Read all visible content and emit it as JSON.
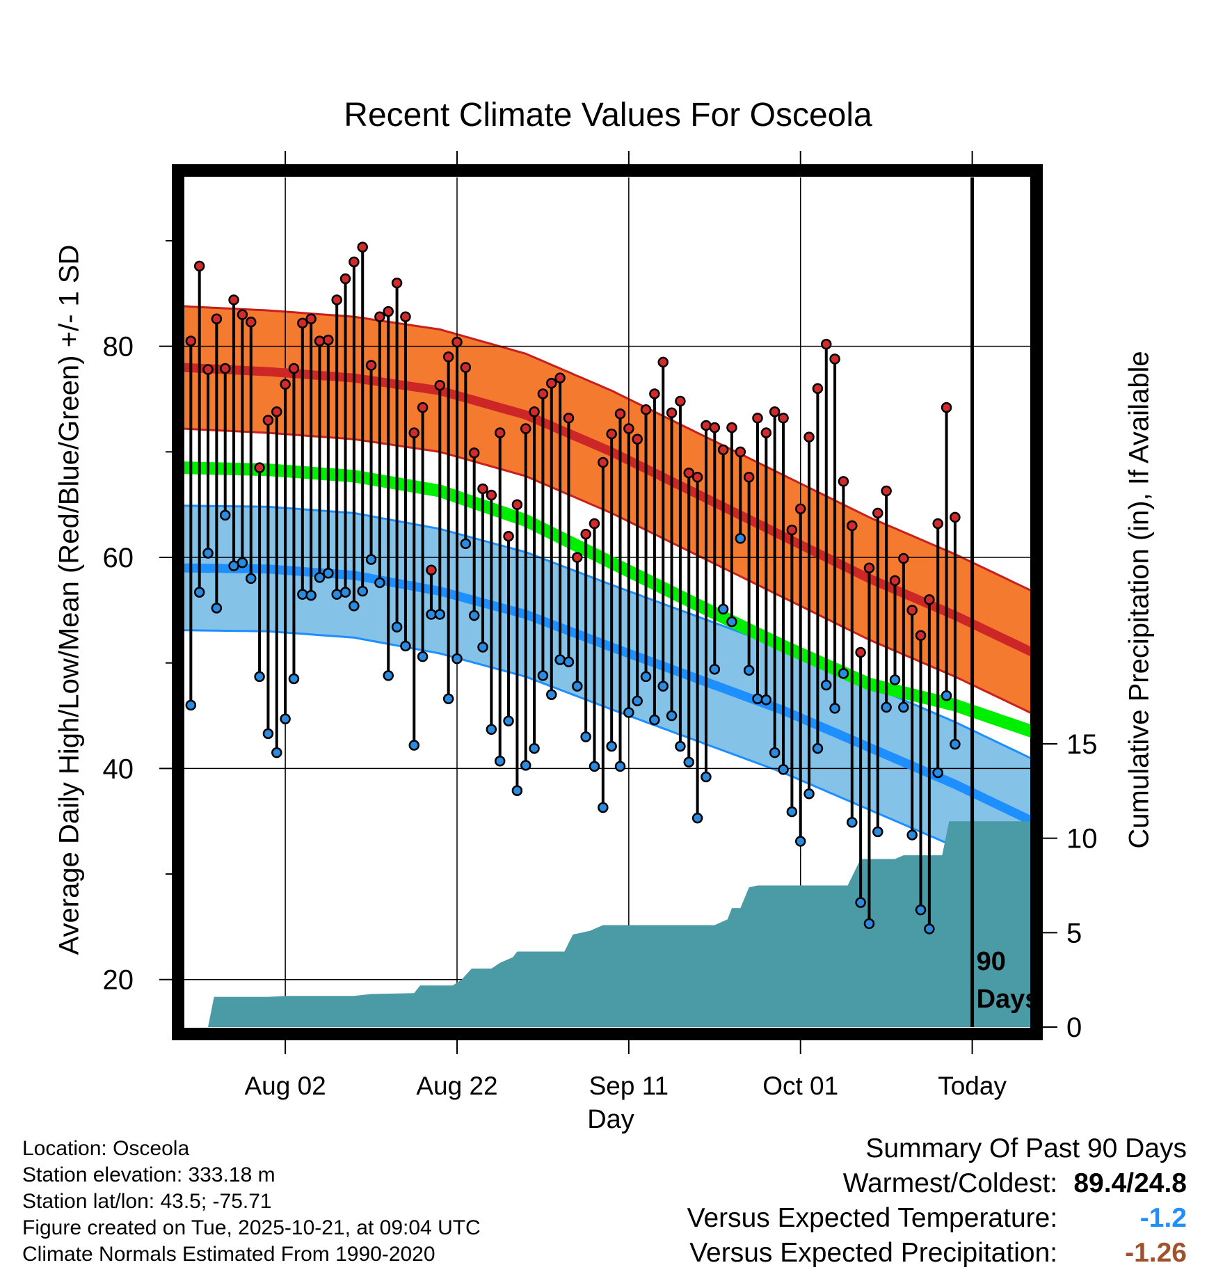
{
  "colors": {
    "high_band": "#f47a30",
    "high_band_edge": "#c8201e",
    "high_mean": "#cd2626",
    "low_band": "#84c2e8",
    "low_band_edge": "#1e8fff",
    "low_mean": "#1e8fff",
    "mean_line": "#00ee00",
    "precip_fill": "#4a9ba5",
    "high_dot": "#d22b2b",
    "low_dot": "#2a8be0",
    "cold_value": "#1e8fff",
    "dry_value": "#a0522d"
  },
  "chart_data": {
    "type": "line",
    "title": "Recent Climate Values For Osceola",
    "xlabel": "Day",
    "ylabel": "Average Daily High/Low/Mean (Red/Blue/Green) +/- 1 SD",
    "y2label": "Cumulative Precipitation (in), If Available",
    "x_range_days": [
      -90,
      9
    ],
    "x_ticks": [
      {
        "day": -78,
        "label": "Aug 02"
      },
      {
        "day": -58,
        "label": "Aug 22"
      },
      {
        "day": -38,
        "label": "Sep 11"
      },
      {
        "day": -18,
        "label": "Oct 01"
      },
      {
        "day": 2,
        "label": "Today"
      }
    ],
    "ylim": [
      15.5,
      96
    ],
    "y_ticks": [
      20,
      40,
      60,
      80
    ],
    "y_minor_ticks": [
      30,
      50,
      70,
      90
    ],
    "y2lim": [
      0,
      45
    ],
    "y2_ticks": [
      0,
      5,
      10,
      15
    ],
    "today_day": 2,
    "today_note": [
      "90",
      "Days"
    ],
    "normals": {
      "days": [
        -90,
        -80,
        -70,
        -60,
        -50,
        -40,
        -30,
        -20,
        -10,
        0,
        9
      ],
      "high_mean": [
        78,
        77.6,
        77,
        75.8,
        73.5,
        70,
        66,
        62,
        58,
        54.5,
        51
      ],
      "high_sd": 5.8,
      "low_mean": [
        59,
        58.9,
        58.3,
        56.8,
        54.6,
        51.5,
        48.5,
        45.5,
        42,
        38.5,
        35
      ],
      "low_sd": 5.9,
      "mean": [
        68.5,
        68.3,
        67.7,
        66.3,
        63.5,
        59.5,
        55.5,
        51.6,
        48,
        46,
        43.5
      ],
      "low_band_end_day": 0
    },
    "daily": {
      "start_day": -89,
      "highs": [
        80.5,
        87.6,
        77.8,
        82.6,
        77.9,
        84.4,
        83,
        82.3,
        68.5,
        73,
        73.8,
        76.4,
        77.9,
        82.2,
        82.6,
        80.5,
        80.6,
        84.4,
        86.4,
        88,
        89.4,
        78.2,
        82.8,
        83.3,
        86,
        82.8,
        71.8,
        74.2,
        58.8,
        76.3,
        79,
        80.4,
        78,
        69.9,
        66.5,
        65.9,
        71.8,
        62,
        65,
        72.2,
        73.8,
        75.5,
        76.5,
        77,
        73.2,
        60,
        62.2,
        63.2,
        69,
        71.7,
        73.6,
        72.2,
        71.2,
        74,
        75.5,
        78.5,
        73.7,
        74.8,
        68,
        67.6,
        72.5,
        72.3,
        70.2,
        72.3,
        70,
        67.6,
        73.2,
        71.8,
        73.8,
        73.2,
        62.6,
        64.6,
        71.4,
        76,
        80.2,
        78.8,
        67.2,
        63,
        51,
        59,
        64.2,
        66.3,
        57.8,
        59.9,
        55,
        52.6,
        56,
        63.2,
        74.2,
        63.8
      ],
      "lows": [
        46,
        56.7,
        60.4,
        55.2,
        64,
        59.2,
        59.5,
        58,
        48.7,
        43.3,
        41.5,
        44.7,
        48.5,
        56.5,
        56.4,
        58.1,
        58.5,
        56.5,
        56.7,
        55.4,
        56.8,
        59.8,
        57.6,
        48.8,
        53.4,
        51.6,
        42.2,
        50.6,
        54.6,
        54.6,
        46.6,
        50.4,
        61.3,
        54.5,
        51.5,
        43.7,
        40.7,
        44.5,
        37.9,
        40.3,
        41.9,
        48.8,
        47,
        50.3,
        50.1,
        47.8,
        43,
        40.2,
        36.3,
        42.1,
        40.2,
        45.3,
        46.4,
        48.7,
        44.6,
        47.8,
        45,
        42.1,
        40.6,
        35.3,
        39.2,
        49.4,
        55.1,
        53.9,
        61.8,
        49.3,
        46.6,
        46.5,
        41.5,
        39.9,
        35.9,
        33.1,
        37.6,
        41.9,
        47.9,
        45.7,
        49,
        34.9,
        27.3,
        25.3,
        34,
        45.8,
        48.4,
        45.8,
        33.7,
        26.6,
        24.8,
        39.6,
        46.9,
        42.3
      ]
    },
    "precip_cumulative": [
      {
        "day": -90,
        "in": 0
      },
      {
        "day": -87,
        "in": 0
      },
      {
        "day": -86.3,
        "in": 1.6
      },
      {
        "day": -80,
        "in": 1.6
      },
      {
        "day": -78,
        "in": 1.65
      },
      {
        "day": -70,
        "in": 1.65
      },
      {
        "day": -68,
        "in": 1.75
      },
      {
        "day": -63,
        "in": 1.8
      },
      {
        "day": -62.3,
        "in": 2.2
      },
      {
        "day": -58.5,
        "in": 2.2
      },
      {
        "day": -57.5,
        "in": 2.5
      },
      {
        "day": -56.3,
        "in": 3.1
      },
      {
        "day": -54,
        "in": 3.1
      },
      {
        "day": -53,
        "in": 3.4
      },
      {
        "day": -51.5,
        "in": 3.7
      },
      {
        "day": -51,
        "in": 4
      },
      {
        "day": -45.5,
        "in": 4
      },
      {
        "day": -44.5,
        "in": 4.9
      },
      {
        "day": -42.5,
        "in": 5.1
      },
      {
        "day": -41,
        "in": 5.4
      },
      {
        "day": -28,
        "in": 5.4
      },
      {
        "day": -26.5,
        "in": 5.7
      },
      {
        "day": -26,
        "in": 6.3
      },
      {
        "day": -25,
        "in": 6.3
      },
      {
        "day": -24,
        "in": 7.4
      },
      {
        "day": -23,
        "in": 7.5
      },
      {
        "day": -12.5,
        "in": 7.5
      },
      {
        "day": -11,
        "in": 8.9
      },
      {
        "day": -7,
        "in": 8.9
      },
      {
        "day": -6,
        "in": 9.1
      },
      {
        "day": -1.5,
        "in": 9.1
      },
      {
        "day": -0.7,
        "in": 10.9
      },
      {
        "day": 9,
        "in": 10.9
      }
    ]
  },
  "location_info": {
    "location": "Location: Osceola",
    "elevation": "Station elevation: 333.18 m",
    "latlon": "Station lat/lon: 43.5; -75.71",
    "created": "Figure created on Tue, 2025-10-21, at 09:04 UTC",
    "normals": "Climate Normals Estimated From 1990-2020"
  },
  "summary": {
    "heading": "Summary Of Past 90 Days",
    "warm_cold_label": "Warmest/Coldest:",
    "warm_cold_value": "89.4/24.8",
    "temp_label": "Versus Expected Temperature:",
    "temp_value": "-1.2",
    "precip_label": "Versus Expected Precipitation:",
    "precip_value": "-1.26"
  }
}
